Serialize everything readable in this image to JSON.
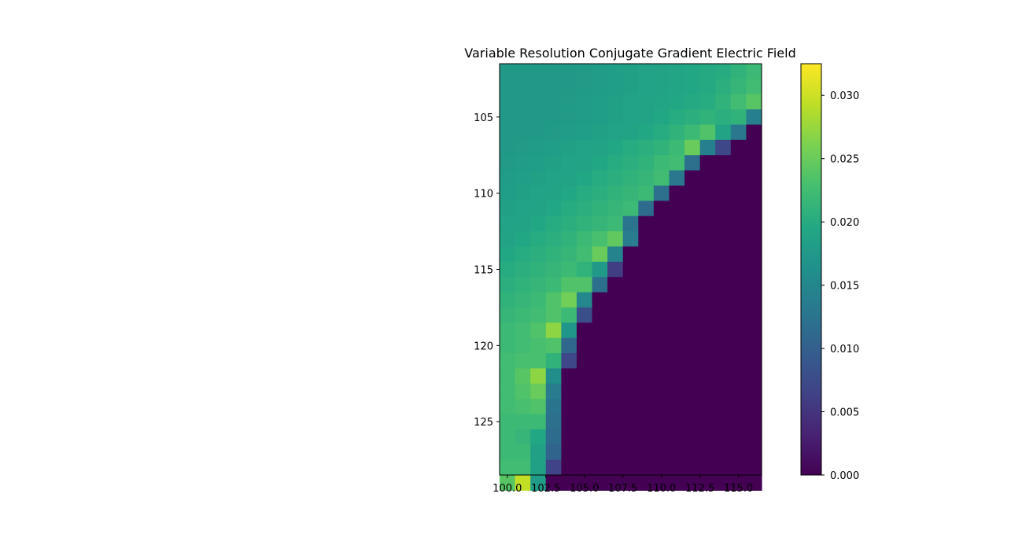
{
  "chart_data": {
    "type": "heatmap",
    "title": "Variable Resolution Conjugate Gradient Electric Field",
    "xlabel": "",
    "ylabel": "",
    "colormap": "viridis",
    "x_range": [
      99.5,
      116.5
    ],
    "y_range": [
      101.5,
      128.5
    ],
    "x_ticks": [
      100.0,
      102.5,
      105.0,
      107.5,
      110.0,
      112.5,
      115.0
    ],
    "x_tick_labels": [
      "100.0",
      "102.5",
      "105.0",
      "107.5",
      "110.0",
      "112.5",
      "115.0"
    ],
    "y_ticks": [
      105,
      110,
      115,
      120,
      125
    ],
    "y_tick_labels": [
      "105",
      "110",
      "115",
      "120",
      "125"
    ],
    "color_range": [
      0.0,
      0.0325
    ],
    "colorbar_ticks": [
      0.0,
      0.005,
      0.01,
      0.015,
      0.02,
      0.025,
      0.03
    ],
    "colorbar_tick_labels": [
      "0.000",
      "0.005",
      "0.010",
      "0.015",
      "0.020",
      "0.025",
      "0.030"
    ],
    "grid": false,
    "x_start": 100,
    "y_start": 102,
    "values": [
      [
        0.0175,
        0.0175,
        0.0175,
        0.0175,
        0.0175,
        0.0178,
        0.018,
        0.0182,
        0.0185,
        0.0188,
        0.019,
        0.0192,
        0.0195,
        0.0198,
        0.02,
        0.021,
        0.022
      ],
      [
        0.0175,
        0.0175,
        0.0175,
        0.0175,
        0.0175,
        0.0178,
        0.018,
        0.0182,
        0.0185,
        0.0188,
        0.019,
        0.0192,
        0.0195,
        0.0198,
        0.0205,
        0.0215,
        0.0225
      ],
      [
        0.0175,
        0.0175,
        0.0175,
        0.0175,
        0.0178,
        0.018,
        0.0182,
        0.0185,
        0.0188,
        0.019,
        0.0192,
        0.0195,
        0.0198,
        0.02,
        0.021,
        0.0225,
        0.024
      ],
      [
        0.0175,
        0.0175,
        0.0175,
        0.0175,
        0.0178,
        0.018,
        0.0182,
        0.0185,
        0.0188,
        0.019,
        0.0195,
        0.02,
        0.0205,
        0.021,
        0.0205,
        0.021,
        0.014
      ],
      [
        0.0175,
        0.0175,
        0.0175,
        0.0178,
        0.018,
        0.0182,
        0.0185,
        0.0188,
        0.019,
        0.0195,
        0.02,
        0.021,
        0.022,
        0.0235,
        0.019,
        0.013,
        0.0
      ],
      [
        0.0175,
        0.0178,
        0.018,
        0.0182,
        0.0185,
        0.0188,
        0.019,
        0.0195,
        0.02,
        0.0205,
        0.021,
        0.022,
        0.025,
        0.014,
        0.007,
        0.0,
        0.0
      ],
      [
        0.0178,
        0.018,
        0.0182,
        0.0185,
        0.0188,
        0.019,
        0.0195,
        0.02,
        0.0205,
        0.021,
        0.022,
        0.0225,
        0.012,
        0.0,
        0.0,
        0.0,
        0.0
      ],
      [
        0.018,
        0.0182,
        0.0185,
        0.0188,
        0.019,
        0.0195,
        0.02,
        0.0205,
        0.021,
        0.0215,
        0.0225,
        0.013,
        0.0,
        0.0,
        0.0,
        0.0,
        0.0
      ],
      [
        0.0182,
        0.0185,
        0.0188,
        0.019,
        0.0195,
        0.02,
        0.0205,
        0.021,
        0.0215,
        0.022,
        0.012,
        0.0,
        0.0,
        0.0,
        0.0,
        0.0,
        0.0
      ],
      [
        0.0185,
        0.0188,
        0.019,
        0.0195,
        0.02,
        0.0205,
        0.021,
        0.0215,
        0.022,
        0.0115,
        0.0,
        0.0,
        0.0,
        0.0,
        0.0,
        0.0,
        0.0
      ],
      [
        0.0188,
        0.019,
        0.0195,
        0.02,
        0.0205,
        0.021,
        0.0215,
        0.022,
        0.0125,
        0.0,
        0.0,
        0.0,
        0.0,
        0.0,
        0.0,
        0.0,
        0.0
      ],
      [
        0.019,
        0.0195,
        0.02,
        0.0205,
        0.021,
        0.022,
        0.023,
        0.0245,
        0.0135,
        0.0,
        0.0,
        0.0,
        0.0,
        0.0,
        0.0,
        0.0,
        0.0
      ],
      [
        0.0195,
        0.02,
        0.0205,
        0.021,
        0.0215,
        0.0225,
        0.025,
        0.0145,
        0.0,
        0.0,
        0.0,
        0.0,
        0.0,
        0.0,
        0.0,
        0.0,
        0.0
      ],
      [
        0.02,
        0.0205,
        0.021,
        0.0215,
        0.022,
        0.021,
        0.0175,
        0.006,
        0.0,
        0.0,
        0.0,
        0.0,
        0.0,
        0.0,
        0.0,
        0.0,
        0.0
      ],
      [
        0.0205,
        0.021,
        0.0215,
        0.022,
        0.0235,
        0.0235,
        0.012,
        0.0,
        0.0,
        0.0,
        0.0,
        0.0,
        0.0,
        0.0,
        0.0,
        0.0,
        0.0
      ],
      [
        0.021,
        0.0215,
        0.022,
        0.0235,
        0.0255,
        0.015,
        0.0,
        0.0,
        0.0,
        0.0,
        0.0,
        0.0,
        0.0,
        0.0,
        0.0,
        0.0,
        0.0
      ],
      [
        0.0215,
        0.022,
        0.0225,
        0.0235,
        0.022,
        0.008,
        0.0,
        0.0,
        0.0,
        0.0,
        0.0,
        0.0,
        0.0,
        0.0,
        0.0,
        0.0,
        0.0
      ],
      [
        0.022,
        0.0225,
        0.0235,
        0.027,
        0.017,
        0.0,
        0.0,
        0.0,
        0.0,
        0.0,
        0.0,
        0.0,
        0.0,
        0.0,
        0.0,
        0.0,
        0.0
      ],
      [
        0.022,
        0.0225,
        0.023,
        0.0235,
        0.011,
        0.0,
        0.0,
        0.0,
        0.0,
        0.0,
        0.0,
        0.0,
        0.0,
        0.0,
        0.0,
        0.0,
        0.0
      ],
      [
        0.0225,
        0.023,
        0.023,
        0.021,
        0.007,
        0.0,
        0.0,
        0.0,
        0.0,
        0.0,
        0.0,
        0.0,
        0.0,
        0.0,
        0.0,
        0.0,
        0.0
      ],
      [
        0.0225,
        0.024,
        0.027,
        0.016,
        0.0,
        0.0,
        0.0,
        0.0,
        0.0,
        0.0,
        0.0,
        0.0,
        0.0,
        0.0,
        0.0,
        0.0,
        0.0
      ],
      [
        0.0225,
        0.0235,
        0.025,
        0.0135,
        0.0,
        0.0,
        0.0,
        0.0,
        0.0,
        0.0,
        0.0,
        0.0,
        0.0,
        0.0,
        0.0,
        0.0,
        0.0
      ],
      [
        0.0225,
        0.023,
        0.0235,
        0.0125,
        0.0,
        0.0,
        0.0,
        0.0,
        0.0,
        0.0,
        0.0,
        0.0,
        0.0,
        0.0,
        0.0,
        0.0,
        0.0
      ],
      [
        0.022,
        0.022,
        0.022,
        0.012,
        0.0,
        0.0,
        0.0,
        0.0,
        0.0,
        0.0,
        0.0,
        0.0,
        0.0,
        0.0,
        0.0,
        0.0,
        0.0
      ],
      [
        0.022,
        0.0215,
        0.0195,
        0.0115,
        0.0,
        0.0,
        0.0,
        0.0,
        0.0,
        0.0,
        0.0,
        0.0,
        0.0,
        0.0,
        0.0,
        0.0,
        0.0
      ],
      [
        0.022,
        0.022,
        0.0185,
        0.0105,
        0.0,
        0.0,
        0.0,
        0.0,
        0.0,
        0.0,
        0.0,
        0.0,
        0.0,
        0.0,
        0.0,
        0.0,
        0.0
      ],
      [
        0.0225,
        0.0225,
        0.0185,
        0.0065,
        0.0,
        0.0,
        0.0,
        0.0,
        0.0,
        0.0,
        0.0,
        0.0,
        0.0,
        0.0,
        0.0,
        0.0,
        0.0
      ],
      [
        0.024,
        0.0295,
        0.018,
        0.0,
        0.0,
        0.0,
        0.0,
        0.0,
        0.0,
        0.0,
        0.0,
        0.0,
        0.0,
        0.0,
        0.0,
        0.0,
        0.0
      ]
    ]
  }
}
